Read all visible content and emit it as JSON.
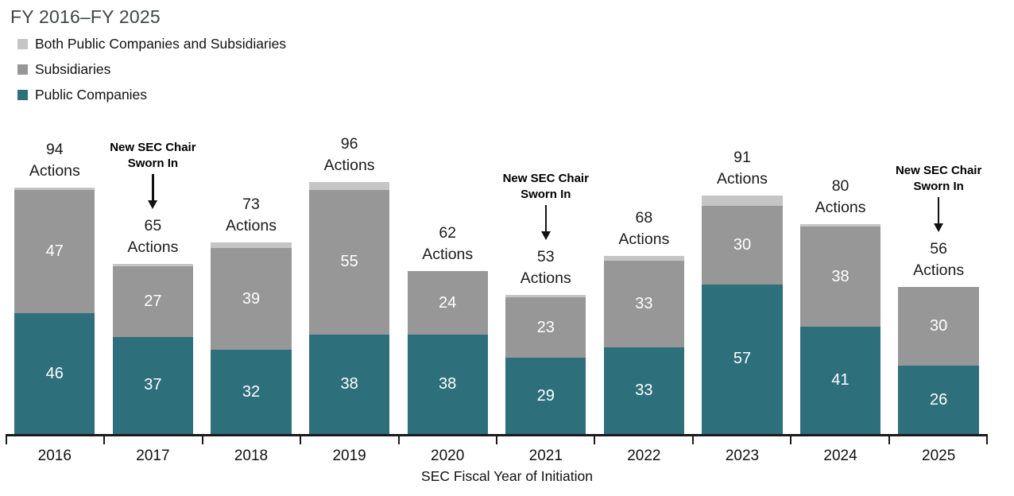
{
  "chart_data": {
    "type": "bar",
    "stacked": true,
    "title": "FY 2016–FY 2025",
    "xlabel": "SEC Fiscal Year of Initiation",
    "ylabel": "",
    "grid": false,
    "legend_position": "top-left",
    "categories": [
      "2016",
      "2017",
      "2018",
      "2019",
      "2020",
      "2021",
      "2022",
      "2023",
      "2024",
      "2025"
    ],
    "series": [
      {
        "name": "Public Companies",
        "color": "#2e6f7c",
        "values": [
          46,
          37,
          32,
          38,
          38,
          29,
          33,
          57,
          41,
          26
        ]
      },
      {
        "name": "Subsidiaries",
        "color": "#979797",
        "values": [
          47,
          27,
          39,
          55,
          24,
          23,
          33,
          30,
          38,
          30
        ]
      },
      {
        "name": "Both Public Companies and Subsidiaries",
        "color": "#c5c5c5",
        "values": [
          1,
          1,
          2,
          3,
          0,
          1,
          2,
          4,
          1,
          0
        ]
      }
    ],
    "totals": [
      94,
      65,
      73,
      96,
      62,
      53,
      68,
      91,
      80,
      56
    ],
    "total_suffix": "Actions",
    "annotations": [
      {
        "category": "2017",
        "lines": [
          "New SEC Chair",
          "Sworn In"
        ]
      },
      {
        "category": "2021",
        "lines": [
          "New SEC Chair",
          "Sworn In"
        ]
      },
      {
        "category": "2025",
        "lines": [
          "New SEC Chair",
          "Sworn In"
        ]
      }
    ],
    "axis_color": "#1a1a1a"
  }
}
